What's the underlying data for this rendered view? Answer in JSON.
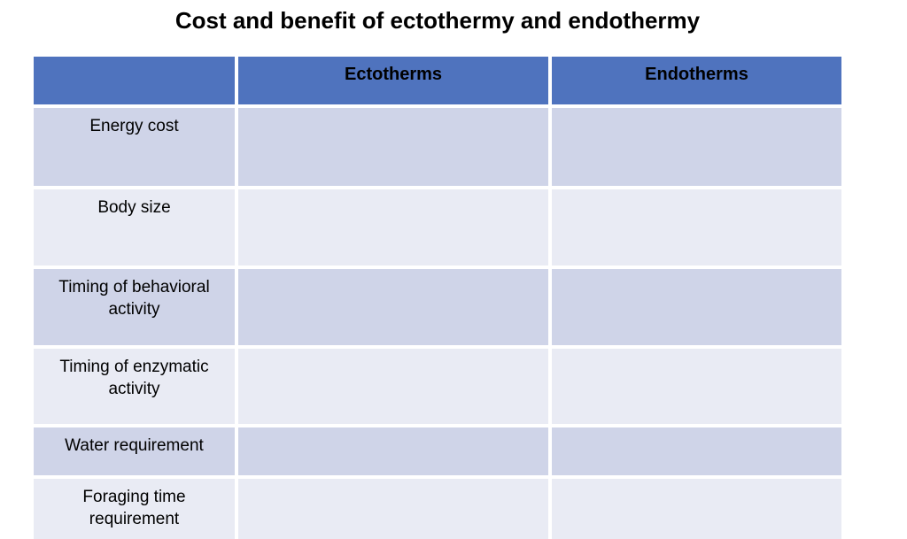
{
  "title": "Cost and benefit of ectothermy and endothermy",
  "table": {
    "headers": [
      "",
      "Ectotherms",
      "Endotherms"
    ],
    "rows": [
      {
        "label": "Energy cost",
        "ectotherms": "",
        "endotherms": ""
      },
      {
        "label": "Body size",
        "ectotherms": "",
        "endotherms": ""
      },
      {
        "label": "Timing of behavioral\nactivity",
        "ectotherms": "",
        "endotherms": ""
      },
      {
        "label": "Timing of enzymatic\nactivity",
        "ectotherms": "",
        "endotherms": ""
      },
      {
        "label": "Water requirement",
        "ectotherms": "",
        "endotherms": ""
      },
      {
        "label": "Foraging time\nrequirement",
        "ectotherms": "",
        "endotherms": ""
      }
    ]
  },
  "colors": {
    "header_fill": "#4f73be",
    "band_dark": "#cfd4e8",
    "band_light": "#e9ebf4",
    "text": "#000000",
    "background": "#ffffff"
  }
}
